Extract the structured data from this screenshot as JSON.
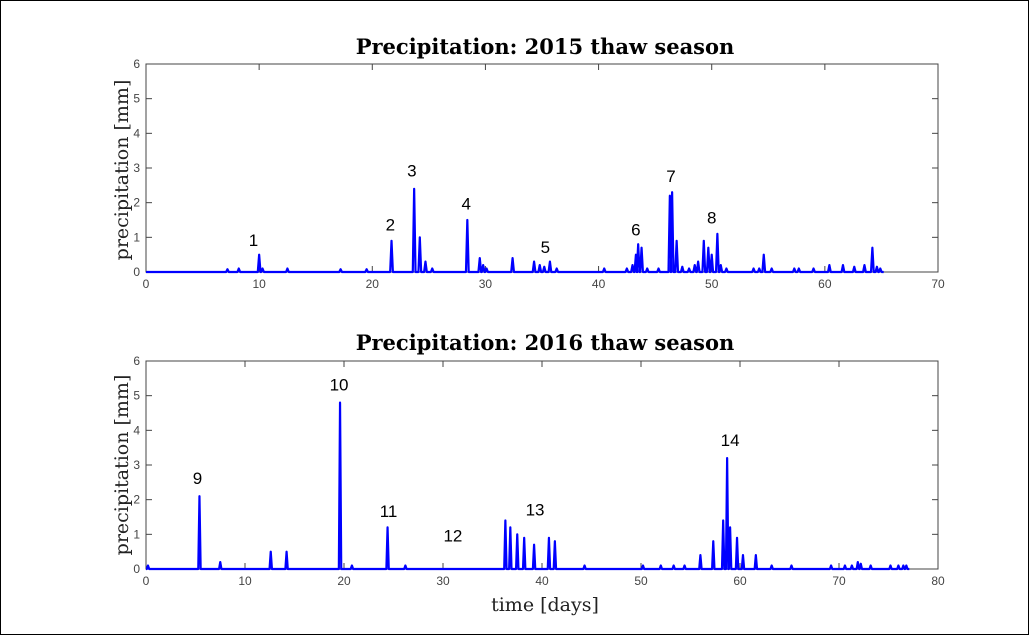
{
  "chart_data": [
    {
      "type": "line",
      "title": "Precipitation: 2015 thaw season",
      "xlabel": "",
      "ylabel": "precipitation [mm]",
      "xlim": [
        0,
        70
      ],
      "ylim": [
        0,
        6
      ],
      "xticks": [
        0,
        10,
        20,
        30,
        40,
        50,
        60,
        70
      ],
      "yticks": [
        0,
        1,
        2,
        3,
        4,
        5,
        6
      ],
      "grid": false,
      "color": "#0000ff",
      "spikes": [
        [
          7.2,
          0.08
        ],
        [
          8.2,
          0.1
        ],
        [
          10.0,
          0.5
        ],
        [
          10.3,
          0.1
        ],
        [
          12.5,
          0.1
        ],
        [
          17.2,
          0.08
        ],
        [
          19.5,
          0.08
        ],
        [
          21.7,
          0.9
        ],
        [
          23.7,
          2.4
        ],
        [
          24.2,
          1.0
        ],
        [
          24.7,
          0.3
        ],
        [
          25.3,
          0.1
        ],
        [
          28.4,
          1.5
        ],
        [
          29.5,
          0.4
        ],
        [
          29.8,
          0.2
        ],
        [
          30.1,
          0.1
        ],
        [
          32.4,
          0.4
        ],
        [
          34.3,
          0.3
        ],
        [
          34.8,
          0.2
        ],
        [
          35.2,
          0.15
        ],
        [
          35.7,
          0.3
        ],
        [
          36.3,
          0.1
        ],
        [
          40.5,
          0.1
        ],
        [
          42.5,
          0.1
        ],
        [
          43.0,
          0.2
        ],
        [
          43.3,
          0.5
        ],
        [
          43.5,
          0.8
        ],
        [
          43.8,
          0.7
        ],
        [
          44.3,
          0.1
        ],
        [
          45.3,
          0.1
        ],
        [
          46.3,
          2.2
        ],
        [
          46.5,
          2.3
        ],
        [
          46.9,
          0.9
        ],
        [
          47.4,
          0.15
        ],
        [
          48.0,
          0.1
        ],
        [
          48.5,
          0.2
        ],
        [
          48.8,
          0.3
        ],
        [
          49.3,
          0.9
        ],
        [
          49.7,
          0.7
        ],
        [
          50.0,
          0.5
        ],
        [
          50.5,
          1.1
        ],
        [
          50.8,
          0.2
        ],
        [
          51.3,
          0.1
        ],
        [
          53.7,
          0.1
        ],
        [
          54.2,
          0.1
        ],
        [
          54.6,
          0.5
        ],
        [
          55.3,
          0.1
        ],
        [
          57.3,
          0.1
        ],
        [
          57.7,
          0.1
        ],
        [
          59.0,
          0.1
        ],
        [
          60.4,
          0.2
        ],
        [
          61.6,
          0.2
        ],
        [
          62.6,
          0.15
        ],
        [
          63.5,
          0.2
        ],
        [
          64.2,
          0.7
        ],
        [
          64.6,
          0.15
        ],
        [
          64.9,
          0.1
        ]
      ],
      "annotations": [
        {
          "label": "1",
          "x": 9.5,
          "y": 0.75
        },
        {
          "label": "2",
          "x": 21.6,
          "y": 1.2
        },
        {
          "label": "3",
          "x": 23.5,
          "y": 2.75
        },
        {
          "label": "4",
          "x": 28.3,
          "y": 1.8
        },
        {
          "label": "5",
          "x": 35.3,
          "y": 0.55
        },
        {
          "label": "6",
          "x": 43.3,
          "y": 1.05
        },
        {
          "label": "7",
          "x": 46.4,
          "y": 2.6
        },
        {
          "label": "8",
          "x": 50.0,
          "y": 1.4
        }
      ]
    },
    {
      "type": "line",
      "title": "Precipitation: 2016 thaw season",
      "xlabel": "time [days]",
      "ylabel": "precipitation [mm]",
      "xlim": [
        0,
        80
      ],
      "ylim": [
        0,
        6
      ],
      "xticks": [
        0,
        10,
        20,
        30,
        40,
        50,
        60,
        70,
        80
      ],
      "yticks": [
        0,
        1,
        2,
        3,
        4,
        5,
        6
      ],
      "grid": false,
      "color": "#0000ff",
      "spikes": [
        [
          0.2,
          0.1
        ],
        [
          5.4,
          2.1
        ],
        [
          7.5,
          0.2
        ],
        [
          12.6,
          0.5
        ],
        [
          14.2,
          0.5
        ],
        [
          19.6,
          4.8
        ],
        [
          20.8,
          0.1
        ],
        [
          24.4,
          1.2
        ],
        [
          26.2,
          0.1
        ],
        [
          36.3,
          1.4
        ],
        [
          36.8,
          1.2
        ],
        [
          37.5,
          1.0
        ],
        [
          38.2,
          0.9
        ],
        [
          39.2,
          0.7
        ],
        [
          40.7,
          0.9
        ],
        [
          41.3,
          0.8
        ],
        [
          44.3,
          0.1
        ],
        [
          50.2,
          0.1
        ],
        [
          52.0,
          0.1
        ],
        [
          53.3,
          0.1
        ],
        [
          54.4,
          0.1
        ],
        [
          56.0,
          0.4
        ],
        [
          57.3,
          0.8
        ],
        [
          58.3,
          1.4
        ],
        [
          58.7,
          3.2
        ],
        [
          59.0,
          1.2
        ],
        [
          59.7,
          0.9
        ],
        [
          60.3,
          0.4
        ],
        [
          61.6,
          0.4
        ],
        [
          63.2,
          0.1
        ],
        [
          65.2,
          0.1
        ],
        [
          69.2,
          0.1
        ],
        [
          70.6,
          0.1
        ],
        [
          71.3,
          0.1
        ],
        [
          71.9,
          0.2
        ],
        [
          72.2,
          0.15
        ],
        [
          73.2,
          0.1
        ],
        [
          75.2,
          0.1
        ],
        [
          76.0,
          0.1
        ],
        [
          76.5,
          0.1
        ],
        [
          76.8,
          0.1
        ]
      ],
      "annotations": [
        {
          "label": "9",
          "x": 5.2,
          "y": 2.45
        },
        {
          "label": "10",
          "x": 19.5,
          "y": 5.15
        },
        {
          "label": "11",
          "x": 24.5,
          "y": 1.5
        },
        {
          "label": "12",
          "x": 31.0,
          "y": 0.8
        },
        {
          "label": "13",
          "x": 39.3,
          "y": 1.55
        },
        {
          "label": "14",
          "x": 59.0,
          "y": 3.55
        }
      ]
    }
  ]
}
